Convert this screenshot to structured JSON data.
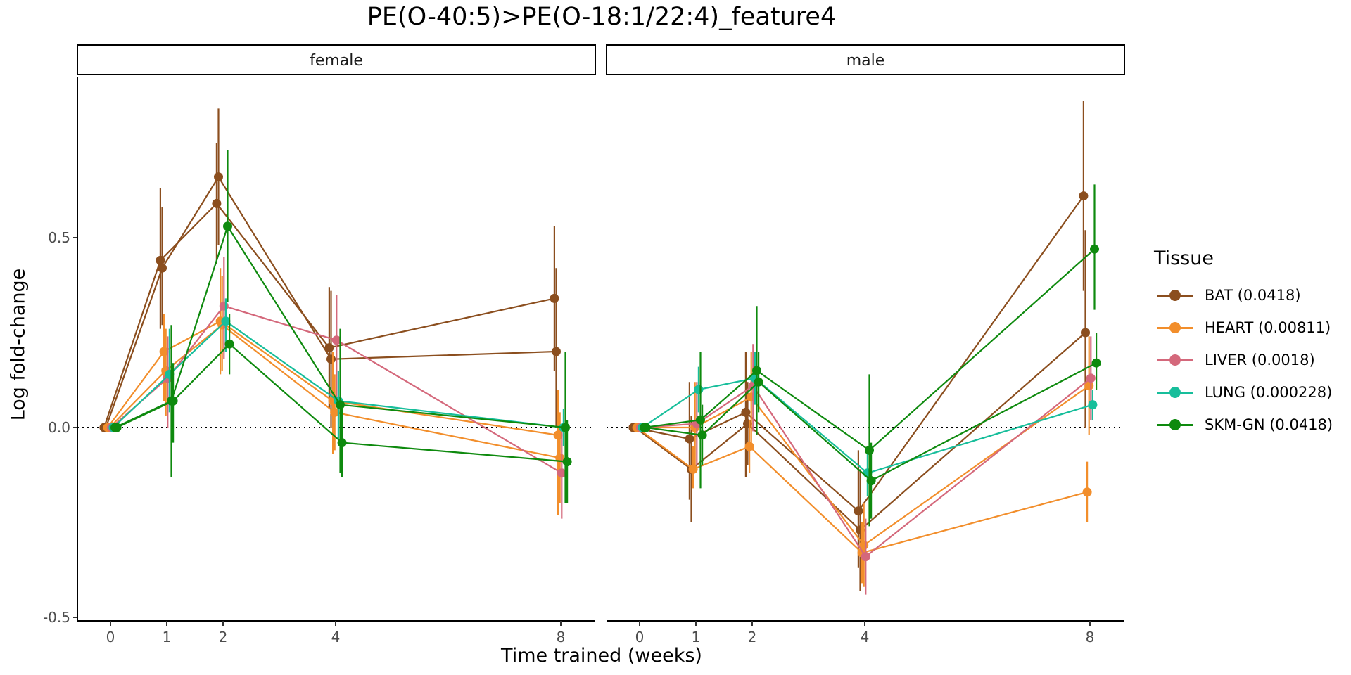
{
  "chart_data": {
    "type": "line",
    "title": "PE(O-40:5)>PE(O-18:1/22:4)_feature4",
    "xlabel": "Time trained (weeks)",
    "ylabel": "Log fold-change",
    "x_ticks": [
      0,
      1,
      2,
      4,
      8
    ],
    "y_ticks": [
      -0.5,
      0.0,
      0.5
    ],
    "y_tick_labels": [
      "-0.5",
      "0.0",
      "0.5"
    ],
    "ylim": [
      -0.5,
      0.9
    ],
    "reference_line": 0,
    "grid": false,
    "legend_title": "Tissue",
    "legend_position": "right",
    "panels": [
      {
        "label": "female",
        "series": [
          {
            "name": "BAT (0.0418)",
            "color": "#8B4E1E",
            "x": [
              0,
              1,
              2,
              4,
              8
            ],
            "y": [
              0,
              0.44,
              0.59,
              0.21,
              0.34
            ],
            "err_lo": [
              0,
              0.26,
              0.43,
              0.05,
              0.15
            ],
            "err_hi": [
              0,
              0.63,
              0.75,
              0.37,
              0.53
            ]
          },
          {
            "name": "BAT (0.0418)",
            "color": "#8B4E1E",
            "x": [
              0,
              1,
              2,
              4,
              8
            ],
            "y": [
              0,
              0.42,
              0.66,
              0.18,
              0.2
            ],
            "err_lo": [
              0,
              0.27,
              0.48,
              0.0,
              0.0
            ],
            "err_hi": [
              0,
              0.58,
              0.84,
              0.36,
              0.42
            ]
          },
          {
            "name": "HEART (0.00811)",
            "color": "#F28E2B",
            "x": [
              0,
              1,
              2,
              4,
              8
            ],
            "y": [
              0,
              0.2,
              0.28,
              0.07,
              -0.02
            ],
            "err_lo": [
              0,
              0.07,
              0.14,
              -0.07,
              -0.23
            ],
            "err_hi": [
              0,
              0.3,
              0.42,
              0.2,
              0.1
            ]
          },
          {
            "name": "HEART (0.00811)",
            "color": "#F28E2B",
            "x": [
              0,
              1,
              2,
              4,
              8
            ],
            "y": [
              0,
              0.15,
              0.27,
              0.04,
              -0.08
            ],
            "err_lo": [
              0,
              0.03,
              0.15,
              -0.06,
              -0.2
            ],
            "err_hi": [
              0,
              0.26,
              0.4,
              0.14,
              0.04
            ]
          },
          {
            "name": "LIVER (0.0018)",
            "color": "#D4687B",
            "x": [
              0,
              1,
              2,
              4,
              8
            ],
            "y": [
              0,
              0.13,
              0.32,
              0.23,
              -0.12
            ],
            "err_lo": [
              0,
              0.0,
              0.18,
              0.08,
              -0.24
            ],
            "err_hi": [
              0,
              0.24,
              0.45,
              0.35,
              -0.01
            ]
          },
          {
            "name": "LUNG (0.000228)",
            "color": "#17BE9B",
            "x": [
              0,
              1,
              2,
              4,
              8
            ],
            "y": [
              0,
              0.14,
              0.28,
              0.07,
              0.0
            ],
            "err_lo": [
              0,
              0.04,
              0.2,
              -0.03,
              -0.05
            ],
            "err_hi": [
              0,
              0.26,
              0.34,
              0.15,
              0.05
            ]
          },
          {
            "name": "SKM-GN (0.0418)",
            "color": "#0E8A0E",
            "x": [
              0,
              1,
              2,
              4,
              8
            ],
            "y": [
              0,
              0.07,
              0.53,
              0.06,
              0.0
            ],
            "err_lo": [
              0,
              -0.13,
              0.33,
              -0.12,
              -0.2
            ],
            "err_hi": [
              0,
              0.27,
              0.73,
              0.26,
              0.2
            ]
          },
          {
            "name": "SKM-GN (0.0418)",
            "color": "#0E8A0E",
            "x": [
              0,
              1,
              2,
              4,
              8
            ],
            "y": [
              0,
              0.07,
              0.22,
              -0.04,
              -0.09
            ],
            "err_lo": [
              0,
              -0.04,
              0.14,
              -0.13,
              -0.2
            ],
            "err_hi": [
              0,
              0.17,
              0.3,
              0.05,
              0.02
            ]
          }
        ]
      },
      {
        "label": "male",
        "series": [
          {
            "name": "BAT (0.0418)",
            "color": "#8B4E1E",
            "x": [
              0,
              1,
              2,
              4,
              8
            ],
            "y": [
              0,
              -0.03,
              0.04,
              -0.22,
              0.61
            ],
            "err_lo": [
              0,
              -0.19,
              -0.13,
              -0.37,
              0.36
            ],
            "err_hi": [
              0,
              0.12,
              0.2,
              -0.06,
              0.86
            ]
          },
          {
            "name": "BAT (0.0418)",
            "color": "#8B4E1E",
            "x": [
              0,
              1,
              2,
              4,
              8
            ],
            "y": [
              0,
              -0.11,
              0.01,
              -0.27,
              0.25
            ],
            "err_lo": [
              0,
              -0.25,
              -0.1,
              -0.43,
              0.0
            ],
            "err_hi": [
              0,
              0.03,
              0.12,
              -0.11,
              0.52
            ]
          },
          {
            "name": "HEART (0.00811)",
            "color": "#F28E2B",
            "x": [
              0,
              1,
              2,
              4,
              8
            ],
            "y": [
              0,
              -0.11,
              -0.05,
              -0.33,
              -0.17
            ],
            "err_lo": [
              0,
              -0.16,
              -0.12,
              -0.41,
              -0.25
            ],
            "err_hi": [
              0,
              -0.05,
              0.02,
              -0.25,
              -0.09
            ]
          },
          {
            "name": "HEART (0.00811)",
            "color": "#F28E2B",
            "x": [
              0,
              1,
              2,
              4,
              8
            ],
            "y": [
              0,
              0.0,
              0.08,
              -0.31,
              0.11
            ],
            "err_lo": [
              0,
              -0.12,
              -0.04,
              -0.42,
              -0.02
            ],
            "err_hi": [
              0,
              0.12,
              0.2,
              -0.2,
              0.24
            ]
          },
          {
            "name": "LIVER (0.0018)",
            "color": "#D4687B",
            "x": [
              0,
              1,
              2,
              4,
              8
            ],
            "y": [
              0,
              0.01,
              0.11,
              -0.34,
              0.13
            ],
            "err_lo": [
              0,
              -0.1,
              -0.01,
              -0.44,
              0.02
            ],
            "err_hi": [
              0,
              0.12,
              0.22,
              -0.24,
              0.24
            ]
          },
          {
            "name": "LUNG (0.000228)",
            "color": "#17BE9B",
            "x": [
              0,
              1,
              2,
              4,
              8
            ],
            "y": [
              0,
              0.1,
              0.13,
              -0.12,
              0.06
            ],
            "err_lo": [
              0,
              0.04,
              0.06,
              -0.18,
              0.02
            ],
            "err_hi": [
              0,
              0.16,
              0.2,
              -0.06,
              0.1
            ]
          },
          {
            "name": "SKM-GN (0.0418)",
            "color": "#0E8A0E",
            "x": [
              0,
              1,
              2,
              4,
              8
            ],
            "y": [
              0,
              0.02,
              0.15,
              -0.06,
              0.47
            ],
            "err_lo": [
              0,
              -0.16,
              -0.02,
              -0.26,
              0.31
            ],
            "err_hi": [
              0,
              0.2,
              0.32,
              0.14,
              0.64
            ]
          },
          {
            "name": "SKM-GN (0.0418)",
            "color": "#0E8A0E",
            "x": [
              0,
              1,
              2,
              4,
              8
            ],
            "y": [
              0,
              -0.02,
              0.12,
              -0.14,
              0.17
            ],
            "err_lo": [
              0,
              -0.1,
              0.04,
              -0.24,
              0.1
            ],
            "err_hi": [
              0,
              0.06,
              0.2,
              -0.04,
              0.25
            ]
          }
        ]
      }
    ],
    "legend": [
      {
        "label": "BAT (0.0418)",
        "color": "#8B4E1E"
      },
      {
        "label": "HEART (0.00811)",
        "color": "#F28E2B"
      },
      {
        "label": "LIVER (0.0018)",
        "color": "#D4687B"
      },
      {
        "label": "LUNG (0.000228)",
        "color": "#17BE9B"
      },
      {
        "label": "SKM-GN (0.0418)",
        "color": "#0E8A0E"
      }
    ]
  }
}
